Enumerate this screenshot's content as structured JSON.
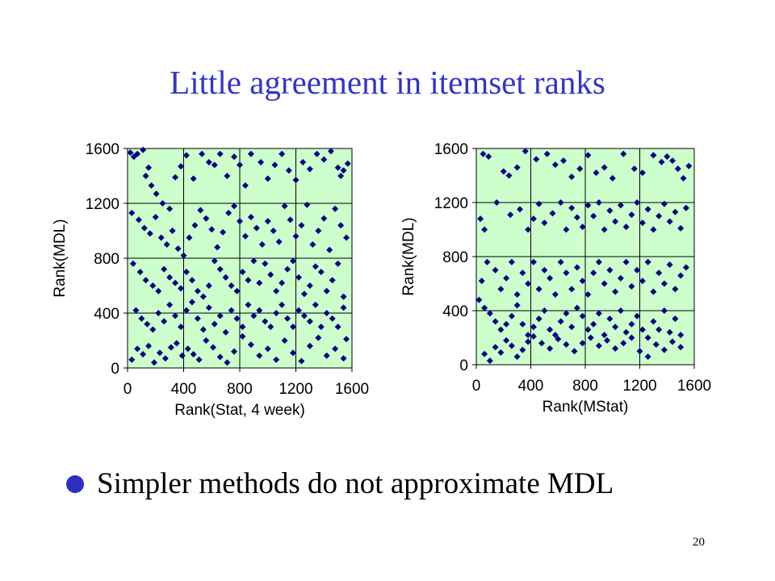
{
  "slide": {
    "title": "Little agreement in itemset ranks",
    "bullet": "Simpler methods do not approximate MDL",
    "page_number": "20"
  },
  "colors": {
    "title": "#3333cc",
    "plot_background": "#ccffcc",
    "marker": "#000080",
    "bullet": "#2e2ebf"
  },
  "chart_data": [
    {
      "type": "scatter",
      "title": "",
      "xlabel": "Rank(Stat, 4 week)",
      "ylabel": "Rank(MDL)",
      "xlim": [
        0,
        1600
      ],
      "ylim": [
        0,
        1600
      ],
      "xticks": [
        "0",
        "400",
        "800",
        "1200",
        "1600"
      ],
      "yticks": [
        "0",
        "400",
        "800",
        "1200",
        "1600"
      ],
      "grid": true,
      "marker": "diamond",
      "points": [
        [
          20,
          1570
        ],
        [
          45,
          1540
        ],
        [
          70,
          1560
        ],
        [
          110,
          1590
        ],
        [
          150,
          1460
        ],
        [
          130,
          1400
        ],
        [
          170,
          1330
        ],
        [
          205,
          1270
        ],
        [
          250,
          1200
        ],
        [
          300,
          1160
        ],
        [
          340,
          1390
        ],
        [
          380,
          1470
        ],
        [
          420,
          1550
        ],
        [
          470,
          1380
        ],
        [
          530,
          1560
        ],
        [
          580,
          1500
        ],
        [
          620,
          1480
        ],
        [
          660,
          1560
        ],
        [
          710,
          1400
        ],
        [
          760,
          1540
        ],
        [
          800,
          1480
        ],
        [
          840,
          1330
        ],
        [
          880,
          1560
        ],
        [
          950,
          1500
        ],
        [
          1000,
          1380
        ],
        [
          1050,
          1480
        ],
        [
          1100,
          1560
        ],
        [
          1150,
          1440
        ],
        [
          1200,
          1370
        ],
        [
          1250,
          1500
        ],
        [
          1300,
          1450
        ],
        [
          1350,
          1560
        ],
        [
          1400,
          1520
        ],
        [
          1450,
          1580
        ],
        [
          1500,
          1460
        ],
        [
          1540,
          1440
        ],
        [
          1570,
          1490
        ],
        [
          1520,
          1400
        ],
        [
          30,
          1130
        ],
        [
          80,
          1080
        ],
        [
          120,
          1020
        ],
        [
          160,
          980
        ],
        [
          200,
          1100
        ],
        [
          240,
          950
        ],
        [
          280,
          900
        ],
        [
          320,
          1000
        ],
        [
          360,
          870
        ],
        [
          400,
          820
        ],
        [
          440,
          950
        ],
        [
          480,
          1040
        ],
        [
          520,
          1150
        ],
        [
          560,
          1090
        ],
        [
          600,
          1010
        ],
        [
          640,
          880
        ],
        [
          680,
          990
        ],
        [
          720,
          1130
        ],
        [
          760,
          1180
        ],
        [
          800,
          1070
        ],
        [
          840,
          960
        ],
        [
          880,
          1100
        ],
        [
          920,
          1020
        ],
        [
          960,
          900
        ],
        [
          1000,
          1070
        ],
        [
          1040,
          1000
        ],
        [
          1080,
          920
        ],
        [
          1120,
          1180
        ],
        [
          1160,
          1080
        ],
        [
          1200,
          960
        ],
        [
          1240,
          1040
        ],
        [
          1280,
          1190
        ],
        [
          1320,
          900
        ],
        [
          1360,
          1000
        ],
        [
          1400,
          1090
        ],
        [
          1440,
          860
        ],
        [
          1480,
          1160
        ],
        [
          1520,
          1040
        ],
        [
          1560,
          950
        ],
        [
          40,
          760
        ],
        [
          90,
          700
        ],
        [
          130,
          640
        ],
        [
          180,
          600
        ],
        [
          220,
          560
        ],
        [
          260,
          720
        ],
        [
          300,
          660
        ],
        [
          340,
          620
        ],
        [
          380,
          580
        ],
        [
          420,
          700
        ],
        [
          460,
          640
        ],
        [
          500,
          560
        ],
        [
          540,
          520
        ],
        [
          580,
          600
        ],
        [
          620,
          780
        ],
        [
          660,
          720
        ],
        [
          700,
          660
        ],
        [
          740,
          600
        ],
        [
          780,
          560
        ],
        [
          820,
          700
        ],
        [
          860,
          640
        ],
        [
          900,
          780
        ],
        [
          940,
          620
        ],
        [
          980,
          760
        ],
        [
          1020,
          680
        ],
        [
          1060,
          560
        ],
        [
          1100,
          620
        ],
        [
          1140,
          720
        ],
        [
          1180,
          780
        ],
        [
          1220,
          660
        ],
        [
          1260,
          540
        ],
        [
          1300,
          600
        ],
        [
          1340,
          740
        ],
        [
          1380,
          700
        ],
        [
          1420,
          560
        ],
        [
          1460,
          640
        ],
        [
          1500,
          760
        ],
        [
          1540,
          520
        ],
        [
          60,
          420
        ],
        [
          100,
          360
        ],
        [
          140,
          320
        ],
        [
          180,
          280
        ],
        [
          220,
          400
        ],
        [
          260,
          340
        ],
        [
          300,
          460
        ],
        [
          340,
          380
        ],
        [
          380,
          300
        ],
        [
          420,
          420
        ],
        [
          460,
          480
        ],
        [
          500,
          360
        ],
        [
          540,
          280
        ],
        [
          580,
          440
        ],
        [
          620,
          320
        ],
        [
          660,
          380
        ],
        [
          700,
          260
        ],
        [
          740,
          420
        ],
        [
          780,
          360
        ],
        [
          820,
          300
        ],
        [
          860,
          460
        ],
        [
          900,
          380
        ],
        [
          940,
          420
        ],
        [
          980,
          340
        ],
        [
          1020,
          300
        ],
        [
          1060,
          400
        ],
        [
          1100,
          460
        ],
        [
          1140,
          360
        ],
        [
          1180,
          300
        ],
        [
          1220,
          420
        ],
        [
          1260,
          380
        ],
        [
          1300,
          340
        ],
        [
          1340,
          460
        ],
        [
          1380,
          300
        ],
        [
          1420,
          400
        ],
        [
          1460,
          360
        ],
        [
          1500,
          300
        ],
        [
          1540,
          440
        ],
        [
          30,
          60
        ],
        [
          70,
          140
        ],
        [
          110,
          100
        ],
        [
          150,
          160
        ],
        [
          190,
          40
        ],
        [
          230,
          110
        ],
        [
          270,
          70
        ],
        [
          310,
          150
        ],
        [
          350,
          180
        ],
        [
          390,
          90
        ],
        [
          430,
          140
        ],
        [
          470,
          100
        ],
        [
          510,
          60
        ],
        [
          560,
          200
        ],
        [
          610,
          150
        ],
        [
          660,
          80
        ],
        [
          710,
          40
        ],
        [
          760,
          120
        ],
        [
          820,
          230
        ],
        [
          880,
          170
        ],
        [
          940,
          90
        ],
        [
          1000,
          140
        ],
        [
          1060,
          60
        ],
        [
          1120,
          200
        ],
        [
          1180,
          110
        ],
        [
          1240,
          50
        ],
        [
          1300,
          160
        ],
        [
          1360,
          220
        ],
        [
          1420,
          90
        ],
        [
          1480,
          140
        ],
        [
          1540,
          70
        ],
        [
          1560,
          210
        ]
      ]
    },
    {
      "type": "scatter",
      "title": "",
      "xlabel": "Rank(MStat)",
      "ylabel": "Rank(MDL)",
      "xlim": [
        0,
        1600
      ],
      "ylim": [
        0,
        1600
      ],
      "xticks": [
        "0",
        "400",
        "800",
        "1200",
        "1600"
      ],
      "yticks": [
        "0",
        "400",
        "800",
        "1200",
        "1600"
      ],
      "grid": true,
      "marker": "diamond",
      "points": [
        [
          50,
          1560
        ],
        [
          90,
          1540
        ],
        [
          200,
          1430
        ],
        [
          240,
          1400
        ],
        [
          300,
          1460
        ],
        [
          360,
          1580
        ],
        [
          440,
          1520
        ],
        [
          520,
          1560
        ],
        [
          580,
          1480
        ],
        [
          640,
          1510
        ],
        [
          700,
          1390
        ],
        [
          760,
          1450
        ],
        [
          820,
          1550
        ],
        [
          880,
          1420
        ],
        [
          940,
          1460
        ],
        [
          1000,
          1380
        ],
        [
          1080,
          1560
        ],
        [
          1160,
          1450
        ],
        [
          1220,
          1420
        ],
        [
          1300,
          1550
        ],
        [
          1360,
          1500
        ],
        [
          1400,
          1540
        ],
        [
          1440,
          1510
        ],
        [
          1480,
          1450
        ],
        [
          1520,
          1380
        ],
        [
          1560,
          1470
        ],
        [
          30,
          1080
        ],
        [
          60,
          1000
        ],
        [
          150,
          1200
        ],
        [
          250,
          1110
        ],
        [
          320,
          1150
        ],
        [
          380,
          1000
        ],
        [
          420,
          1080
        ],
        [
          460,
          1190
        ],
        [
          500,
          1050
        ],
        [
          560,
          1120
        ],
        [
          620,
          1200
        ],
        [
          660,
          1000
        ],
        [
          700,
          1160
        ],
        [
          740,
          1090
        ],
        [
          780,
          1020
        ],
        [
          820,
          1180
        ],
        [
          860,
          1100
        ],
        [
          900,
          1200
        ],
        [
          940,
          1000
        ],
        [
          980,
          1140
        ],
        [
          1020,
          1060
        ],
        [
          1060,
          1180
        ],
        [
          1100,
          1020
        ],
        [
          1140,
          1110
        ],
        [
          1180,
          1200
        ],
        [
          1220,
          1050
        ],
        [
          1260,
          1150
        ],
        [
          1300,
          1000
        ],
        [
          1340,
          1100
        ],
        [
          1380,
          1190
        ],
        [
          1420,
          1060
        ],
        [
          1460,
          1130
        ],
        [
          1500,
          1010
        ],
        [
          1540,
          1160
        ],
        [
          40,
          620
        ],
        [
          80,
          760
        ],
        [
          140,
          700
        ],
        [
          180,
          560
        ],
        [
          220,
          640
        ],
        [
          260,
          760
        ],
        [
          300,
          520
        ],
        [
          340,
          680
        ],
        [
          380,
          600
        ],
        [
          420,
          760
        ],
        [
          460,
          560
        ],
        [
          500,
          700
        ],
        [
          540,
          640
        ],
        [
          580,
          520
        ],
        [
          620,
          760
        ],
        [
          660,
          680
        ],
        [
          700,
          560
        ],
        [
          740,
          720
        ],
        [
          780,
          620
        ],
        [
          820,
          520
        ],
        [
          860,
          680
        ],
        [
          900,
          760
        ],
        [
          940,
          600
        ],
        [
          980,
          700
        ],
        [
          1020,
          540
        ],
        [
          1060,
          640
        ],
        [
          1100,
          760
        ],
        [
          1140,
          580
        ],
        [
          1180,
          700
        ],
        [
          1220,
          620
        ],
        [
          1260,
          760
        ],
        [
          1300,
          540
        ],
        [
          1340,
          680
        ],
        [
          1380,
          600
        ],
        [
          1420,
          740
        ],
        [
          1460,
          560
        ],
        [
          1500,
          660
        ],
        [
          1540,
          720
        ],
        [
          20,
          480
        ],
        [
          60,
          420
        ],
        [
          100,
          380
        ],
        [
          140,
          320
        ],
        [
          180,
          260
        ],
        [
          220,
          300
        ],
        [
          260,
          360
        ],
        [
          300,
          440
        ],
        [
          340,
          300
        ],
        [
          380,
          220
        ],
        [
          420,
          280
        ],
        [
          460,
          340
        ],
        [
          500,
          400
        ],
        [
          540,
          260
        ],
        [
          580,
          220
        ],
        [
          620,
          320
        ],
        [
          660,
          380
        ],
        [
          700,
          280
        ],
        [
          740,
          420
        ],
        [
          780,
          360
        ],
        [
          820,
          260
        ],
        [
          860,
          300
        ],
        [
          900,
          380
        ],
        [
          940,
          220
        ],
        [
          980,
          340
        ],
        [
          1020,
          280
        ],
        [
          1060,
          400
        ],
        [
          1100,
          240
        ],
        [
          1140,
          300
        ],
        [
          1180,
          360
        ],
        [
          1220,
          260
        ],
        [
          1260,
          200
        ],
        [
          1300,
          320
        ],
        [
          1340,
          260
        ],
        [
          1380,
          400
        ],
        [
          1420,
          240
        ],
        [
          1460,
          340
        ],
        [
          1500,
          220
        ],
        [
          60,
          80
        ],
        [
          100,
          30
        ],
        [
          140,
          130
        ],
        [
          180,
          90
        ],
        [
          220,
          180
        ],
        [
          260,
          140
        ],
        [
          300,
          60
        ],
        [
          340,
          110
        ],
        [
          380,
          170
        ],
        [
          420,
          210
        ],
        [
          480,
          160
        ],
        [
          540,
          120
        ],
        [
          600,
          190
        ],
        [
          660,
          150
        ],
        [
          720,
          100
        ],
        [
          780,
          160
        ],
        [
          840,
          200
        ],
        [
          900,
          140
        ],
        [
          960,
          180
        ],
        [
          1020,
          120
        ],
        [
          1080,
          160
        ],
        [
          1140,
          200
        ],
        [
          1200,
          100
        ],
        [
          1260,
          60
        ],
        [
          1320,
          150
        ],
        [
          1380,
          110
        ],
        [
          1440,
          170
        ],
        [
          1500,
          130
        ]
      ]
    }
  ]
}
